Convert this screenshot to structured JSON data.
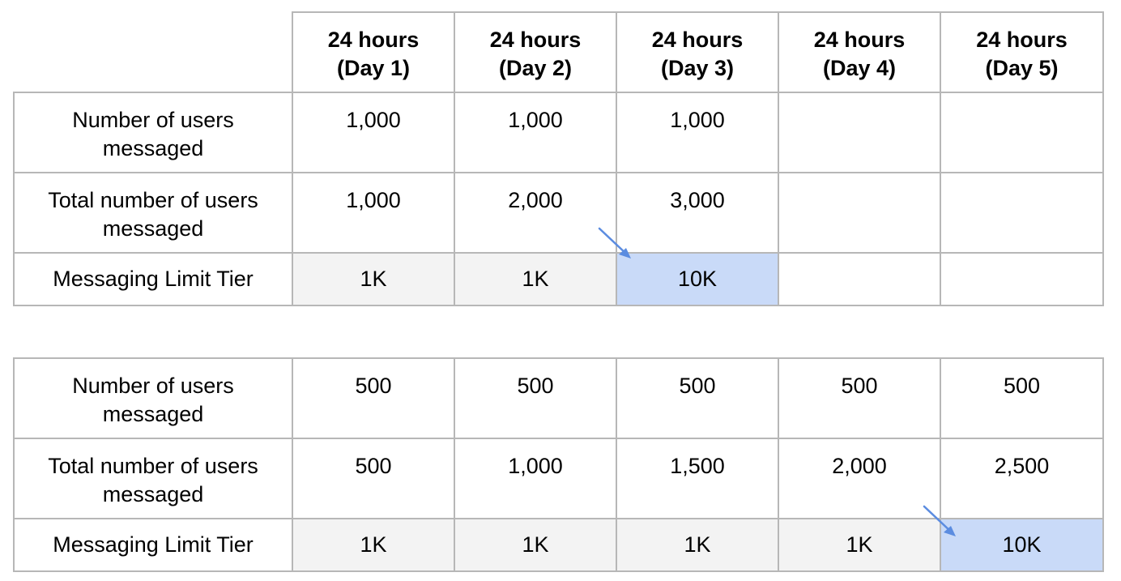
{
  "headers": [
    "24 hours (Day 1)",
    "24 hours (Day 2)",
    "24 hours (Day 3)",
    "24 hours (Day 4)",
    "24 hours (Day 5)"
  ],
  "headers_lines": [
    [
      "24 hours",
      "(Day 1)"
    ],
    [
      "24 hours",
      "(Day 2)"
    ],
    [
      "24 hours",
      "(Day 3)"
    ],
    [
      "24 hours",
      "(Day 4)"
    ],
    [
      "24 hours",
      "(Day 5)"
    ]
  ],
  "table1": {
    "rows": [
      {
        "label_lines": [
          "Number of users",
          "messaged"
        ],
        "values": [
          "1,000",
          "1,000",
          "1,000",
          "",
          ""
        ]
      },
      {
        "label_lines": [
          "Total number of users",
          "messaged"
        ],
        "values": [
          "1,000",
          "2,000",
          "3,000",
          "",
          ""
        ]
      },
      {
        "label_lines": [
          "Messaging Limit Tier"
        ],
        "values": [
          "1K",
          "1K",
          "10K",
          "",
          ""
        ],
        "highlight_index": 2
      }
    ]
  },
  "table2": {
    "rows": [
      {
        "label_lines": [
          "Number of users",
          "messaged"
        ],
        "values": [
          "500",
          "500",
          "500",
          "500",
          "500"
        ]
      },
      {
        "label_lines": [
          "Total number of users",
          "messaged"
        ],
        "values": [
          "500",
          "1,000",
          "1,500",
          "2,000",
          "2,500"
        ]
      },
      {
        "label_lines": [
          "Messaging Limit Tier"
        ],
        "values": [
          "1K",
          "1K",
          "1K",
          "1K",
          "10K"
        ],
        "highlight_index": 4
      }
    ]
  },
  "colors": {
    "highlight": "#c9daf8",
    "tier_bg": "#f3f3f3",
    "border": "#b7b7b7",
    "arrow": "#5b8ce0"
  },
  "icons": [
    "arrow-down-right-icon"
  ]
}
